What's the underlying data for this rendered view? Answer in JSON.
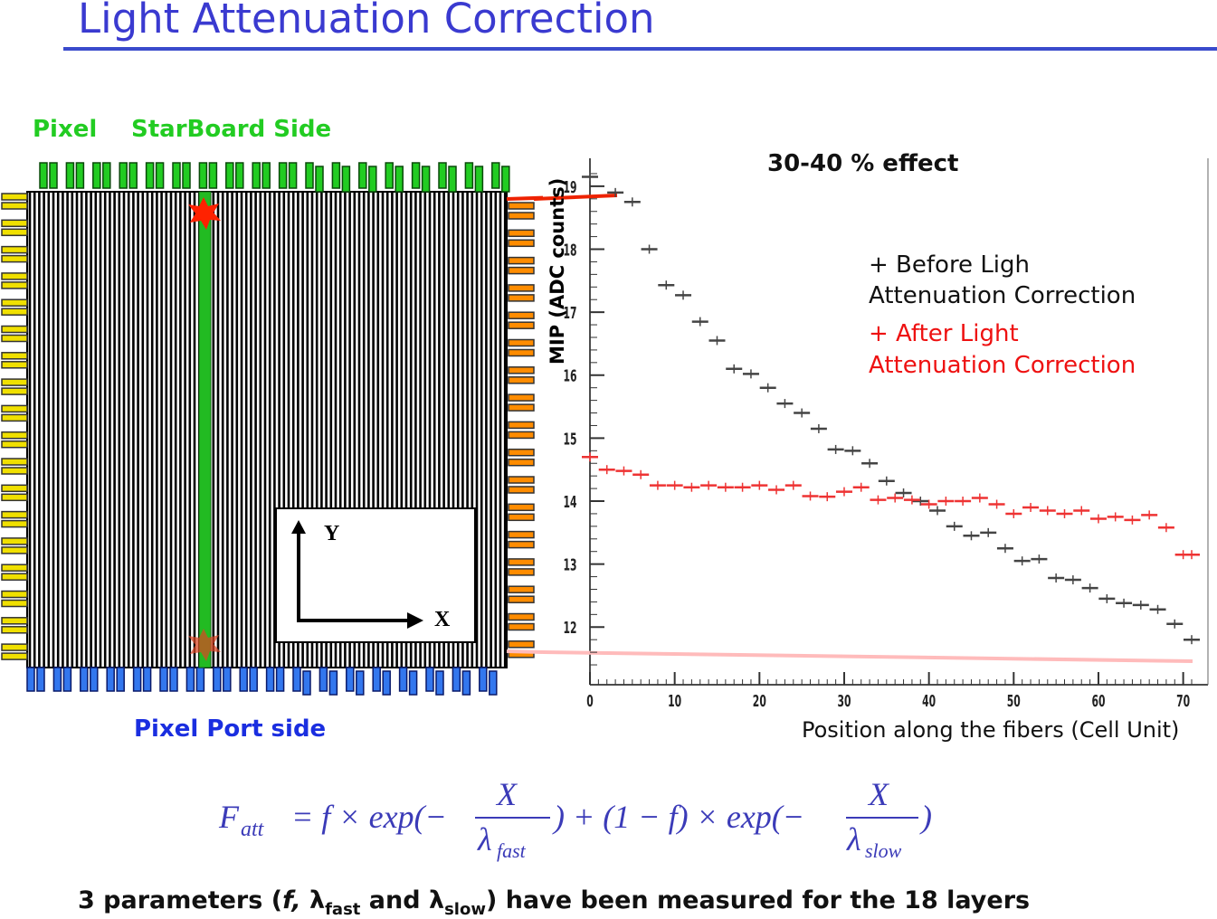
{
  "title": "Light Attenuation Correction",
  "diagram": {
    "pixel_label": "Pixel",
    "starboard_label": "StarBoard Side",
    "port_label": "Pixel Port side",
    "axis_y": "Y",
    "axis_x": "X",
    "colors": {
      "starboard": "#22cc22",
      "port": "#3377ee",
      "left_pixels": "#f0e000",
      "right_pixels": "#ff8c00",
      "fiber": "#22bb22",
      "marker": "#ff2200"
    }
  },
  "chart_data": {
    "type": "scatter",
    "title": "",
    "ylabel": "MIP (ADC counts)",
    "xlabel": "Position along the fibers (Cell Unit)",
    "annotation": "30-40 % effect",
    "xlim": [
      0,
      71
    ],
    "ylim": [
      11.3,
      19.3
    ],
    "xticks": [
      0,
      10,
      20,
      30,
      40,
      50,
      60,
      70
    ],
    "yticks": [
      12,
      13,
      14,
      15,
      16,
      17,
      18,
      19
    ],
    "legend": [
      "+ Before Ligh",
      "Attenuation Correction",
      "+ After Light",
      "Attenuation Correction"
    ],
    "series": [
      {
        "name": "Before Light Attenuation Correction",
        "color": "#444444",
        "x": [
          0,
          3,
          5,
          7,
          9,
          11,
          13,
          15,
          17,
          19,
          21,
          23,
          25,
          27,
          29,
          31,
          33,
          35,
          37,
          39,
          41,
          43,
          45,
          47,
          49,
          51,
          53,
          55,
          57,
          59,
          61,
          63,
          65,
          67,
          69,
          71
        ],
        "y": [
          19.15,
          18.9,
          18.75,
          18.0,
          17.43,
          17.27,
          16.85,
          16.55,
          16.1,
          16.02,
          15.8,
          15.55,
          15.4,
          15.15,
          14.82,
          14.8,
          14.6,
          14.32,
          14.13,
          14.0,
          13.85,
          13.6,
          13.45,
          13.5,
          13.25,
          13.05,
          13.08,
          12.78,
          12.75,
          12.62,
          12.45,
          12.38,
          12.35,
          12.28,
          12.05,
          11.8
        ]
      },
      {
        "name": "After Light Attenuation Correction",
        "color": "#ee3333",
        "x": [
          0,
          2,
          4,
          6,
          8,
          10,
          12,
          14,
          16,
          18,
          20,
          22,
          24,
          26,
          28,
          30,
          32,
          34,
          36,
          38,
          40,
          42,
          44,
          46,
          48,
          50,
          52,
          54,
          56,
          58,
          60,
          62,
          64,
          66,
          68,
          70,
          71
        ],
        "y": [
          14.7,
          14.5,
          14.48,
          14.42,
          14.25,
          14.25,
          14.22,
          14.25,
          14.22,
          14.22,
          14.25,
          14.18,
          14.25,
          14.08,
          14.07,
          14.15,
          14.22,
          14.02,
          14.05,
          14.02,
          13.95,
          14.0,
          14.0,
          14.05,
          13.95,
          13.8,
          13.9,
          13.85,
          13.8,
          13.85,
          13.72,
          13.75,
          13.7,
          13.78,
          13.58,
          13.15,
          13.15
        ]
      }
    ]
  },
  "formula": {
    "f": "F",
    "att": "att",
    "eq": "= f × exp(−",
    "X": "X",
    "lambda_fast": "λ",
    "fast": "fast",
    "mid": ") + (1 − f) × exp(−",
    "lambda_slow": "λ",
    "slow": "slow",
    "close": ")"
  },
  "bottom_text": {
    "prefix": "3 parameters (",
    "f": "f,",
    "lambda1": " λ",
    "fast": "fast",
    "and": " and ",
    "lambda2": "λ",
    "slow": "slow",
    "suffix": ") have been measured for the 18 layers"
  }
}
